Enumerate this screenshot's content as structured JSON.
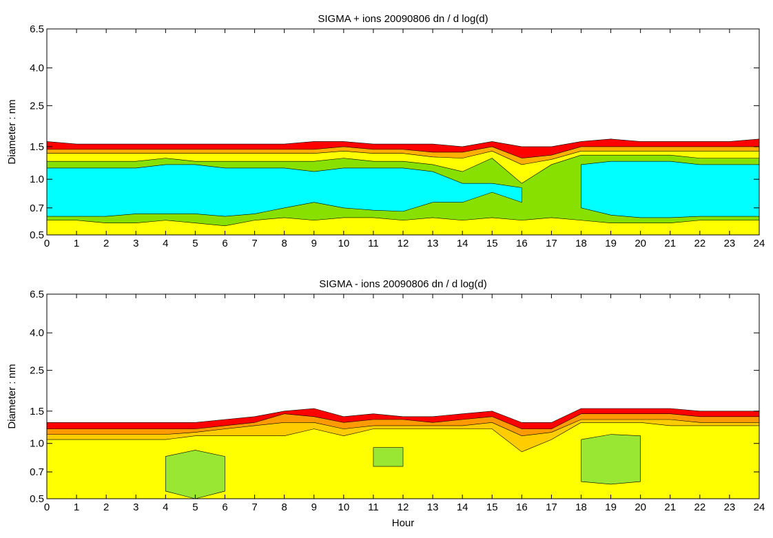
{
  "chart_data": [
    {
      "type": "contour",
      "title": "SIGMA + ions 20090806 dn / d log(d)",
      "ylabel": "Diameter : nm",
      "x": [
        0,
        1,
        2,
        3,
        4,
        5,
        6,
        7,
        8,
        9,
        10,
        11,
        12,
        13,
        14,
        15,
        16,
        17,
        18,
        19,
        20,
        21,
        22,
        23,
        24
      ],
      "xlim": [
        0,
        24
      ],
      "xticks": [
        0,
        1,
        2,
        3,
        4,
        5,
        6,
        7,
        8,
        9,
        10,
        11,
        12,
        13,
        14,
        15,
        16,
        17,
        18,
        19,
        20,
        21,
        22,
        23,
        24
      ],
      "ylim": [
        0.5,
        6.5
      ],
      "log_y": true,
      "yticks": [
        0.5,
        0.7,
        {
          "value": 1,
          "label": "1.0"
        },
        1.5,
        2.5,
        {
          "value": 4,
          "label": "4.0"
        },
        6.5
      ],
      "series": [
        {
          "color": "#ff0000",
          "upper": [
            1.6,
            1.55,
            1.55,
            1.55,
            1.55,
            1.55,
            1.55,
            1.55,
            1.55,
            1.6,
            1.6,
            1.55,
            1.55,
            1.55,
            1.5,
            1.6,
            1.5,
            1.5,
            1.6,
            1.65,
            1.6,
            1.6,
            1.6,
            1.6,
            1.65
          ]
        },
        {
          "color": "#ffb000",
          "upper": [
            1.45,
            1.45,
            1.45,
            1.45,
            1.45,
            1.45,
            1.45,
            1.45,
            1.45,
            1.45,
            1.5,
            1.45,
            1.45,
            1.4,
            1.4,
            1.5,
            1.3,
            1.35,
            1.5,
            1.5,
            1.5,
            1.5,
            1.5,
            1.5,
            1.5
          ]
        },
        {
          "color": "#ffff00",
          "upper": [
            1.38,
            1.38,
            1.38,
            1.38,
            1.38,
            1.38,
            1.38,
            1.38,
            1.38,
            1.38,
            1.42,
            1.38,
            1.38,
            1.32,
            1.3,
            1.42,
            1.2,
            1.28,
            1.42,
            1.42,
            1.42,
            1.42,
            1.42,
            1.42,
            1.42
          ]
        },
        {
          "color": "#88e000",
          "upper": [
            1.25,
            1.25,
            1.25,
            1.25,
            1.3,
            1.25,
            1.25,
            1.25,
            1.25,
            1.25,
            1.3,
            1.25,
            1.25,
            1.2,
            1.1,
            1.3,
            0.95,
            1.2,
            1.35,
            1.35,
            1.35,
            1.35,
            1.3,
            1.3,
            1.3
          ],
          "lower": [
            0.6,
            0.6,
            0.58,
            0.58,
            0.6,
            0.58,
            0.56,
            0.6,
            0.62,
            0.6,
            0.62,
            0.62,
            0.6,
            0.62,
            0.6,
            0.62,
            0.6,
            0.62,
            0.6,
            0.58,
            0.58,
            0.58,
            0.6,
            0.6,
            0.6
          ]
        },
        {
          "color": "#00ffff",
          "upper": [
            1.15,
            1.15,
            1.15,
            1.15,
            1.2,
            1.2,
            1.15,
            1.15,
            1.15,
            1.1,
            1.15,
            1.15,
            1.15,
            1.1,
            0.95,
            0.95,
            0.9,
            null,
            1.2,
            1.25,
            1.25,
            1.25,
            1.2,
            1.2,
            1.2
          ],
          "lower": [
            0.63,
            0.63,
            0.63,
            0.65,
            0.65,
            0.65,
            0.63,
            0.65,
            0.7,
            0.75,
            0.7,
            0.68,
            0.67,
            0.75,
            0.75,
            0.85,
            0.75,
            null,
            0.7,
            0.64,
            0.62,
            0.62,
            0.63,
            0.63,
            0.63
          ]
        }
      ]
    },
    {
      "type": "contour",
      "title": "SIGMA - ions 20090806 dn / d log(d)",
      "ylabel": "Diameter : nm",
      "xlabel": "Hour",
      "x": [
        0,
        1,
        2,
        3,
        4,
        5,
        6,
        7,
        8,
        9,
        10,
        11,
        12,
        13,
        14,
        15,
        16,
        17,
        18,
        19,
        20,
        21,
        22,
        23,
        24
      ],
      "xlim": [
        0,
        24
      ],
      "xticks": [
        0,
        1,
        2,
        3,
        4,
        5,
        6,
        7,
        8,
        9,
        10,
        11,
        12,
        13,
        14,
        15,
        16,
        17,
        18,
        19,
        20,
        21,
        22,
        23,
        24
      ],
      "ylim": [
        0.5,
        6.5
      ],
      "log_y": true,
      "yticks": [
        0.5,
        0.7,
        {
          "value": 1,
          "label": "1.0"
        },
        1.5,
        2.5,
        {
          "value": 4,
          "label": "4.0"
        },
        6.5
      ],
      "series": [
        {
          "color": "#ff0000",
          "upper": [
            1.3,
            1.3,
            1.3,
            1.3,
            1.3,
            1.3,
            1.35,
            1.4,
            1.5,
            1.55,
            1.4,
            1.45,
            1.4,
            1.4,
            1.45,
            1.5,
            1.3,
            1.3,
            1.55,
            1.55,
            1.55,
            1.55,
            1.5,
            1.5,
            1.5
          ]
        },
        {
          "color": "#ff9a00",
          "upper": [
            1.2,
            1.2,
            1.2,
            1.2,
            1.2,
            1.2,
            1.25,
            1.3,
            1.45,
            1.4,
            1.3,
            1.35,
            1.35,
            1.3,
            1.35,
            1.4,
            1.2,
            1.2,
            1.45,
            1.45,
            1.45,
            1.45,
            1.4,
            1.4,
            1.4
          ]
        },
        {
          "color": "#ffcc00",
          "upper": [
            1.12,
            1.12,
            1.12,
            1.12,
            1.12,
            1.15,
            1.2,
            1.25,
            1.3,
            1.3,
            1.2,
            1.25,
            1.25,
            1.25,
            1.25,
            1.3,
            1.1,
            1.15,
            1.35,
            1.35,
            1.35,
            1.35,
            1.3,
            1.3,
            1.3
          ]
        },
        {
          "color": "#ffff00",
          "upper": [
            1.05,
            1.05,
            1.05,
            1.05,
            1.05,
            1.1,
            1.1,
            1.1,
            1.1,
            1.2,
            1.1,
            1.2,
            1.2,
            1.2,
            1.2,
            1.2,
            0.9,
            1.05,
            1.3,
            1.3,
            1.3,
            1.25,
            1.25,
            1.25,
            1.25
          ]
        },
        {
          "color": "#99e633",
          "upper": [
            null,
            null,
            null,
            null,
            0.85,
            0.92,
            0.85,
            null,
            null,
            null,
            null,
            0.95,
            0.95,
            null,
            null,
            null,
            null,
            null,
            1.05,
            1.12,
            1.1,
            null,
            null,
            null,
            null
          ],
          "lower": [
            null,
            null,
            null,
            null,
            0.55,
            0.5,
            0.55,
            null,
            null,
            null,
            null,
            0.75,
            0.75,
            null,
            null,
            null,
            null,
            null,
            0.62,
            0.6,
            0.62,
            null,
            null,
            null,
            null
          ]
        }
      ]
    }
  ]
}
